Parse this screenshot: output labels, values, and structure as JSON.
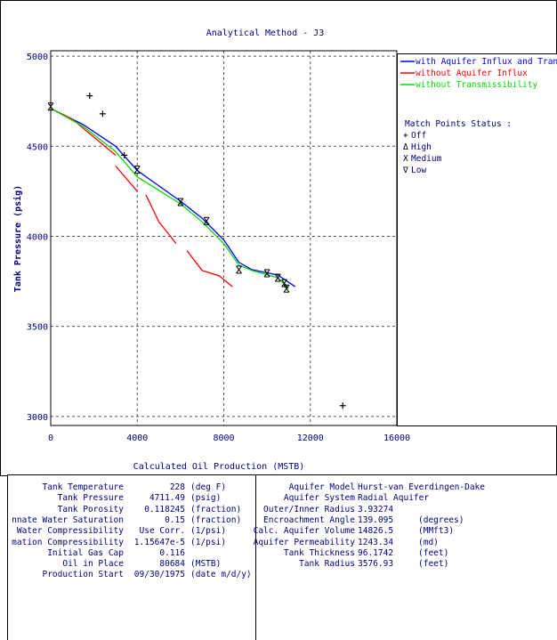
{
  "chart_data": {
    "type": "line",
    "title": "Analytical Method - J3",
    "xlabel": "Calculated Oil Production (MSTB)",
    "ylabel": "Tank Pressure (psig)",
    "xlim": [
      0,
      16000
    ],
    "ylim": [
      2950,
      5030
    ],
    "x_ticks": [
      "0",
      "4000",
      "8000",
      "12000",
      "16000"
    ],
    "y_ticks": [
      "3000",
      "3500",
      "4000",
      "4500",
      "5000"
    ],
    "x_tick_values": [
      0,
      4000,
      8000,
      12000,
      16000
    ],
    "y_tick_values": [
      3000,
      3500,
      4000,
      4500,
      5000
    ],
    "grid": true,
    "series": [
      {
        "name": "with Aquifer Influx and Transmissibility",
        "color": "#0000ff",
        "segments": [
          [
            [
              0,
              4710
            ],
            [
              1500,
              4620
            ],
            [
              3000,
              4500
            ],
            [
              4000,
              4365
            ],
            [
              6000,
              4195
            ],
            [
              7000,
              4100
            ],
            [
              8000,
              3980
            ],
            [
              8700,
              3855
            ],
            [
              9300,
              3815
            ],
            [
              10500,
              3785
            ],
            [
              11300,
              3720
            ]
          ]
        ]
      },
      {
        "name": "without Aquifer Influx",
        "color": "#ff0000",
        "segments": [
          [
            [
              0,
              4710
            ],
            [
              1000,
              4650
            ],
            [
              1800,
              4570
            ],
            [
              2600,
              4490
            ],
            [
              3000,
              4450
            ]
          ],
          [
            [
              3000,
              4390
            ],
            [
              4000,
              4250
            ]
          ],
          [
            [
              4400,
              4230
            ],
            [
              5000,
              4080
            ],
            [
              5800,
              3960
            ]
          ],
          [
            [
              6300,
              3920
            ],
            [
              7000,
              3810
            ],
            [
              7800,
              3780
            ],
            [
              8400,
              3720
            ]
          ]
        ]
      },
      {
        "name": "without Transmissibility",
        "color": "#00dd00",
        "segments": [
          [
            [
              0,
              4710
            ],
            [
              1500,
              4610
            ],
            [
              3000,
              4470
            ],
            [
              4000,
              4330
            ],
            [
              6000,
              4180
            ],
            [
              7000,
              4080
            ],
            [
              8000,
              3960
            ],
            [
              8700,
              3840
            ],
            [
              9300,
              3810
            ],
            [
              10500,
              3770
            ],
            [
              11000,
              3710
            ]
          ]
        ]
      }
    ],
    "match_points": [
      {
        "status": "off",
        "points": [
          [
            1800,
            4780
          ],
          [
            2400,
            4680
          ],
          [
            3400,
            4450
          ],
          [
            13500,
            3060
          ]
        ]
      },
      {
        "status": "medium",
        "points": [
          [
            0,
            4720
          ],
          [
            4000,
            4370
          ],
          [
            6000,
            4190
          ],
          [
            7200,
            4085
          ],
          [
            8700,
            3815
          ],
          [
            10000,
            3795
          ],
          [
            10500,
            3770
          ],
          [
            10800,
            3740
          ],
          [
            10900,
            3710
          ]
        ]
      }
    ],
    "legend": {
      "placement": "right",
      "entries": [
        "with Aquifer Influx and Transmissibility",
        "without Aquifer Influx",
        "without Transmissibility"
      ],
      "match_title": "Match Points Status :",
      "match_entries": [
        {
          "symbol": "+",
          "label": "Off"
        },
        {
          "symbol": "Δ",
          "label": "High"
        },
        {
          "symbol": "X",
          "label": "Medium"
        },
        {
          "symbol": "∇",
          "label": "Low"
        }
      ]
    }
  },
  "tank_properties": [
    {
      "label": "Tank Temperature",
      "value": "228",
      "unit": "(deg F)"
    },
    {
      "label": "Tank Pressure",
      "value": "4711.49",
      "unit": "(psig)"
    },
    {
      "label": "Tank Porosity",
      "value": "0.118245",
      "unit": "(fraction)"
    },
    {
      "label": "nnate Water Saturation",
      "value": "0.15",
      "unit": "(fraction)"
    },
    {
      "label": "Water Compressibility",
      "value": "Use Corr.",
      "unit": "(1/psi)"
    },
    {
      "label": "mation Compressibility",
      "value": "1.15647e-5",
      "unit": "(1/psi)"
    },
    {
      "label": "Initial Gas Cap",
      "value": "0.116",
      "unit": ""
    },
    {
      "label": "Oil in Place",
      "value": "80684",
      "unit": "(MSTB)"
    },
    {
      "label": "Production Start",
      "value": "09/30/1975",
      "unit": "(date m/d/y)"
    }
  ],
  "aquifer_properties": [
    {
      "label": "Aquifer Model",
      "value": "Hurst-van Everdingen-Dake",
      "unit": ""
    },
    {
      "label": "Aquifer System",
      "value": "Radial Aquifer",
      "unit": ""
    },
    {
      "label": "Outer/Inner Radius",
      "value": "3.93274",
      "unit": ""
    },
    {
      "label": "Encroachment Angle",
      "value": "139.095",
      "unit": "(degrees)"
    },
    {
      "label": "Calc. Aquifer Volume",
      "value": "14826.5",
      "unit": "(MMft3)"
    },
    {
      "label": "Aquifer Permeability",
      "value": "1243.34",
      "unit": "(md)"
    },
    {
      "label": "Tank Thickness",
      "value": "96.1742",
      "unit": "(feet)"
    },
    {
      "label": "Tank Radius",
      "value": "3576.93",
      "unit": "(feet)"
    }
  ]
}
